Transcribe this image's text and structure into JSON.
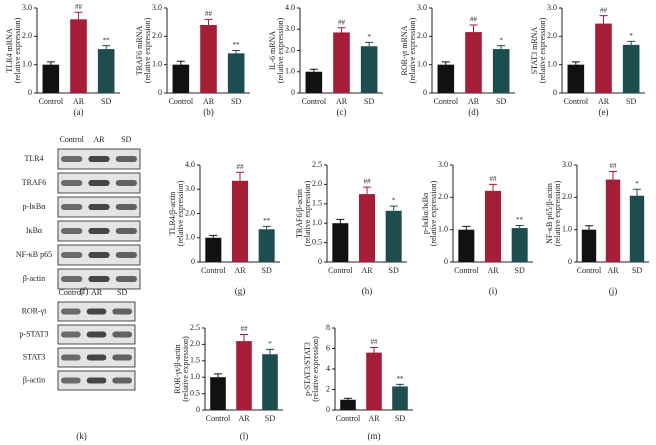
{
  "chart_data": [
    {
      "type": "bar",
      "caption": "(a)",
      "ylabel": "TLR4 mRNA",
      "ylabel_sub": "(relative expression)",
      "categories": [
        "Control",
        "AR",
        "SD"
      ],
      "values": [
        1.0,
        2.6,
        1.55
      ],
      "errors": [
        0.1,
        0.25,
        0.12
      ],
      "significance": [
        null,
        "##",
        "**"
      ],
      "colors": [
        "#111111",
        "#a51d36",
        "#1e4d4f"
      ],
      "ylim": [
        0,
        3
      ],
      "yticks": [
        0,
        {
          "value": 1,
          "label": "1.0"
        },
        {
          "value": 2,
          "label": "2.0"
        },
        {
          "value": 3,
          "label": "3.0"
        }
      ]
    },
    {
      "type": "bar",
      "caption": "(b)",
      "ylabel": "TRAF6 mRNA",
      "ylabel_sub": "(relative expression)",
      "categories": [
        "Control",
        "AR",
        "SD"
      ],
      "values": [
        1.0,
        2.4,
        1.4
      ],
      "errors": [
        0.12,
        0.2,
        0.1
      ],
      "significance": [
        null,
        "##",
        "**"
      ],
      "colors": [
        "#111111",
        "#a51d36",
        "#1e4d4f"
      ],
      "ylim": [
        0,
        3
      ],
      "yticks": [
        0,
        {
          "value": 1,
          "label": "1.0"
        },
        {
          "value": 2,
          "label": "2.0"
        },
        {
          "value": 3,
          "label": "3.0"
        }
      ]
    },
    {
      "type": "bar",
      "caption": "(c)",
      "ylabel": "IL-6 mRNA",
      "ylabel_sub": "(relative expression)",
      "categories": [
        "Control",
        "AR",
        "SD"
      ],
      "values": [
        1.0,
        2.85,
        2.2
      ],
      "errors": [
        0.12,
        0.22,
        0.18
      ],
      "significance": [
        null,
        "##",
        "*"
      ],
      "colors": [
        "#111111",
        "#a51d36",
        "#1e4d4f"
      ],
      "ylim": [
        0,
        4
      ],
      "yticks": [
        0,
        {
          "value": 1,
          "label": "1.0"
        },
        {
          "value": 2,
          "label": "2.0"
        },
        {
          "value": 3,
          "label": "3.0"
        },
        {
          "value": 4,
          "label": "4.0"
        }
      ]
    },
    {
      "type": "bar",
      "caption": "(d)",
      "ylabel": "ROR-γt mRNA",
      "ylabel_sub": "(relative expression)",
      "categories": [
        "Control",
        "AR",
        "SD"
      ],
      "values": [
        1.0,
        2.15,
        1.55
      ],
      "errors": [
        0.1,
        0.25,
        0.12
      ],
      "significance": [
        null,
        "##",
        "*"
      ],
      "colors": [
        "#111111",
        "#a51d36",
        "#1e4d4f"
      ],
      "ylim": [
        0,
        3
      ],
      "yticks": [
        0,
        {
          "value": 1,
          "label": "1.0"
        },
        {
          "value": 2,
          "label": "2.0"
        },
        {
          "value": 3,
          "label": "3.0"
        }
      ]
    },
    {
      "type": "bar",
      "caption": "(e)",
      "ylabel": "STAT3 mRNA",
      "ylabel_sub": "(relative expression)",
      "categories": [
        "Control",
        "AR",
        "SD"
      ],
      "values": [
        1.0,
        2.45,
        1.7
      ],
      "errors": [
        0.1,
        0.28,
        0.12
      ],
      "significance": [
        null,
        "##",
        "*"
      ],
      "colors": [
        "#111111",
        "#a51d36",
        "#1e4d4f"
      ],
      "ylim": [
        0,
        3
      ],
      "yticks": [
        0,
        {
          "value": 1,
          "label": "1.0"
        },
        {
          "value": 2,
          "label": "2.0"
        },
        {
          "value": 3,
          "label": "3.0"
        }
      ]
    },
    {
      "type": "bar",
      "caption": "(g)",
      "ylabel": "TLR4/β-actin",
      "ylabel_sub": "(relative expression)",
      "categories": [
        "Control",
        "AR",
        "SD"
      ],
      "values": [
        1.0,
        3.35,
        1.35
      ],
      "errors": [
        0.1,
        0.35,
        0.12
      ],
      "significance": [
        null,
        "##",
        "**"
      ],
      "colors": [
        "#111111",
        "#a51d36",
        "#1e4d4f"
      ],
      "ylim": [
        0,
        4
      ],
      "yticks": [
        0,
        {
          "value": 1,
          "label": "1.0"
        },
        {
          "value": 2,
          "label": "2.0"
        },
        {
          "value": 3,
          "label": "3.0"
        },
        {
          "value": 4,
          "label": "4.0"
        }
      ]
    },
    {
      "type": "bar",
      "caption": "(h)",
      "ylabel": "TRAF6/β-actin",
      "ylabel_sub": "(relative expression)",
      "categories": [
        "Control",
        "AR",
        "SD"
      ],
      "values": [
        1.0,
        1.75,
        1.32
      ],
      "errors": [
        0.1,
        0.18,
        0.12
      ],
      "significance": [
        null,
        "##",
        "*"
      ],
      "colors": [
        "#111111",
        "#a51d36",
        "#1e4d4f"
      ],
      "ylim": [
        0,
        2.5
      ],
      "yticks": [
        0,
        0.5,
        {
          "value": 1,
          "label": "1.0"
        },
        1.5,
        {
          "value": 2,
          "label": "2.0"
        },
        2.5
      ]
    },
    {
      "type": "bar",
      "caption": "(i)",
      "ylabel": "p-IκBα/IκBα",
      "ylabel_sub": "(relative expression)",
      "categories": [
        "Control",
        "AR",
        "SD"
      ],
      "values": [
        1.0,
        2.2,
        1.05
      ],
      "errors": [
        0.1,
        0.2,
        0.08
      ],
      "significance": [
        null,
        "##",
        "**"
      ],
      "colors": [
        "#111111",
        "#a51d36",
        "#1e4d4f"
      ],
      "ylim": [
        0,
        3
      ],
      "yticks": [
        0,
        {
          "value": 1,
          "label": "1.0"
        },
        {
          "value": 2,
          "label": "2.0"
        },
        {
          "value": 3,
          "label": "3.0"
        }
      ]
    },
    {
      "type": "bar",
      "caption": "(j)",
      "ylabel": "NF-κB p65/β-actin",
      "ylabel_sub": "(relative expression)",
      "categories": [
        "Control",
        "AR",
        "SD"
      ],
      "values": [
        1.0,
        2.55,
        2.05
      ],
      "errors": [
        0.12,
        0.25,
        0.2
      ],
      "significance": [
        null,
        "##",
        "*"
      ],
      "colors": [
        "#111111",
        "#a51d36",
        "#1e4d4f"
      ],
      "ylim": [
        0,
        3
      ],
      "yticks": [
        0,
        {
          "value": 1,
          "label": "1.0"
        },
        {
          "value": 2,
          "label": "2.0"
        },
        {
          "value": 3,
          "label": "3.0"
        }
      ]
    },
    {
      "type": "bar",
      "caption": "(l)",
      "ylabel": "ROR-γt/β-actin",
      "ylabel_sub": "(relative expression)",
      "categories": [
        "Control",
        "AR",
        "SD"
      ],
      "values": [
        1.0,
        2.1,
        1.7
      ],
      "errors": [
        0.1,
        0.2,
        0.15
      ],
      "significance": [
        null,
        "##",
        "*"
      ],
      "colors": [
        "#111111",
        "#a51d36",
        "#1e4d4f"
      ],
      "ylim": [
        0,
        2.5
      ],
      "yticks": [
        0,
        0.5,
        {
          "value": 1,
          "label": "1.0"
        },
        1.5,
        {
          "value": 2,
          "label": "2.0"
        },
        2.5
      ]
    },
    {
      "type": "bar",
      "caption": "(m)",
      "ylabel": "p-STAT3/STAT3",
      "ylabel_sub": "(relative expression)",
      "categories": [
        "Control",
        "AR",
        "SD"
      ],
      "values": [
        1.0,
        5.6,
        2.3
      ],
      "errors": [
        0.15,
        0.5,
        0.2
      ],
      "significance": [
        null,
        "##",
        "**"
      ],
      "colors": [
        "#111111",
        "#a51d36",
        "#1e4d4f"
      ],
      "ylim": [
        0,
        8
      ],
      "yticks": [
        0,
        2,
        4,
        6,
        8
      ]
    }
  ],
  "blots": [
    {
      "caption": "(f)",
      "lanes": [
        "Control",
        "AR",
        "SD"
      ],
      "rows": [
        "TLR4",
        "TRAF6",
        "p-IκBα",
        "IκBα",
        "NF-κB p65",
        "β-actin"
      ]
    },
    {
      "caption": "(k)",
      "lanes": [
        "Control",
        "AR",
        "SD"
      ],
      "rows": [
        "ROR-γt",
        "p-STAT3",
        "STAT3",
        "β-actin"
      ]
    }
  ]
}
